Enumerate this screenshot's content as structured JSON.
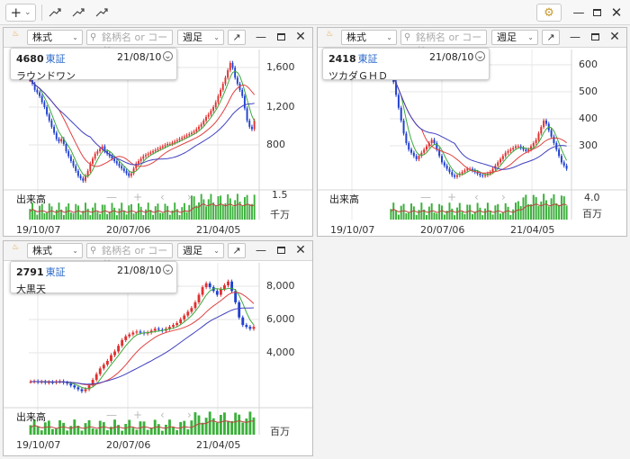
{
  "toolbar": {
    "add_label": "+",
    "add_caret": "⌄",
    "window_controls": [
      "minimize-icon",
      "restore-icon",
      "close-icon"
    ]
  },
  "common": {
    "stock_type": "株式",
    "search_placeholder": "銘柄名 or コード",
    "period": "週足",
    "volume_label": "出来高",
    "x_ticks": [
      "19/10/07",
      "20/07/06",
      "21/04/05"
    ]
  },
  "panels": [
    {
      "code": "4680",
      "market": "東証",
      "date": "21/08/10",
      "name": "ラウンドワン",
      "y_ticks": [
        "1,600",
        "1,200",
        "800"
      ],
      "vol_ticks": [
        "1.5"
      ],
      "vol_unit": "千万",
      "colors": {
        "up": "#e03030",
        "down": "#2040d0",
        "ma_short": "#3caa3c",
        "ma_mid": "#e04040",
        "ma_long": "#4040c0",
        "vol": "#3cb03c"
      }
    },
    {
      "code": "2418",
      "market": "東証",
      "date": "21/08/10",
      "name": "ツカダＧＨＤ",
      "y_ticks": [
        "600",
        "500",
        "400",
        "300"
      ],
      "vol_ticks": [
        "4.0"
      ],
      "vol_unit": "百万",
      "colors": {
        "up": "#e03030",
        "down": "#2040d0",
        "ma_short": "#3caa3c",
        "ma_mid": "#e04040",
        "ma_long": "#4040c0",
        "vol": "#3cb03c"
      }
    },
    {
      "code": "2791",
      "market": "東証",
      "date": "21/08/10",
      "name": "大黒天",
      "y_ticks": [
        "8,000",
        "6,000",
        "4,000"
      ],
      "vol_ticks": [],
      "vol_unit": "百万",
      "colors": {
        "up": "#e03030",
        "down": "#2040d0",
        "ma_short": "#3caa3c",
        "ma_mid": "#e04040",
        "ma_long": "#4040c0",
        "vol": "#3cb03c"
      }
    }
  ],
  "chart_data": [
    {
      "type": "candlestick",
      "ticker": "4680",
      "y_range": [
        600,
        1700
      ],
      "x_ticks": [
        "19/10/07",
        "20/07/06",
        "21/04/05"
      ],
      "close_series": [
        1480,
        1450,
        1400,
        1380,
        1350,
        1300,
        1260,
        1200,
        1150,
        1100,
        1050,
        1000,
        980,
        1000,
        960,
        900,
        860,
        820,
        780,
        740,
        700,
        680,
        660,
        700,
        740,
        800,
        840,
        880,
        900,
        920,
        940,
        900,
        880,
        860,
        840,
        820,
        800,
        780,
        760,
        740,
        720,
        700,
        720,
        760,
        800,
        820,
        840,
        860,
        870,
        880,
        890,
        900,
        910,
        920,
        930,
        940,
        950,
        960,
        960,
        970,
        980,
        990,
        1000,
        1010,
        1020,
        1030,
        1040,
        1050,
        1060,
        1080,
        1100,
        1120,
        1150,
        1180,
        1200,
        1230,
        1260,
        1300,
        1350,
        1400,
        1450,
        1500,
        1560,
        1620,
        1580,
        1500,
        1450,
        1400,
        1350,
        1250,
        1150,
        1100,
        1080,
        1150
      ]
    },
    {
      "type": "candlestick",
      "ticker": "2418",
      "y_range": [
        230,
        650
      ],
      "x_ticks": [
        "19/10/07",
        "20/07/06",
        "21/04/05"
      ],
      "close_series": [
        590,
        560,
        520,
        480,
        440,
        400,
        370,
        350,
        340,
        330,
        320,
        330,
        340,
        350,
        360,
        370,
        380,
        370,
        350,
        330,
        310,
        300,
        290,
        280,
        270,
        265,
        270,
        275,
        280,
        285,
        290,
        290,
        285,
        280,
        275,
        270,
        268,
        270,
        275,
        280,
        290,
        300,
        310,
        320,
        330,
        340,
        345,
        350,
        355,
        360,
        360,
        355,
        350,
        345,
        350,
        360,
        370,
        380,
        400,
        420,
        440,
        430,
        410,
        390,
        370,
        350,
        330,
        310,
        300,
        290
      ]
    },
    {
      "type": "candlestick",
      "ticker": "2791",
      "y_range": [
        2500,
        9500
      ],
      "x_ticks": [
        "19/10/07",
        "20/07/06",
        "21/04/05"
      ],
      "close_series": [
        3400,
        3420,
        3380,
        3400,
        3350,
        3380,
        3360,
        3400,
        3420,
        3350,
        3300,
        3200,
        3100,
        3000,
        2900,
        3000,
        3200,
        3500,
        3800,
        4100,
        4300,
        4500,
        4800,
        5000,
        5300,
        5600,
        5800,
        5900,
        6000,
        6050,
        6000,
        5950,
        6000,
        6100,
        6200,
        6150,
        6100,
        6200,
        6300,
        6400,
        6500,
        6700,
        6900,
        7100,
        7300,
        7600,
        8000,
        8400,
        8600,
        8400,
        8200,
        8000,
        8300,
        8500,
        8700,
        8200,
        7600,
        6800,
        6400,
        6300,
        6200,
        6300
      ]
    }
  ]
}
